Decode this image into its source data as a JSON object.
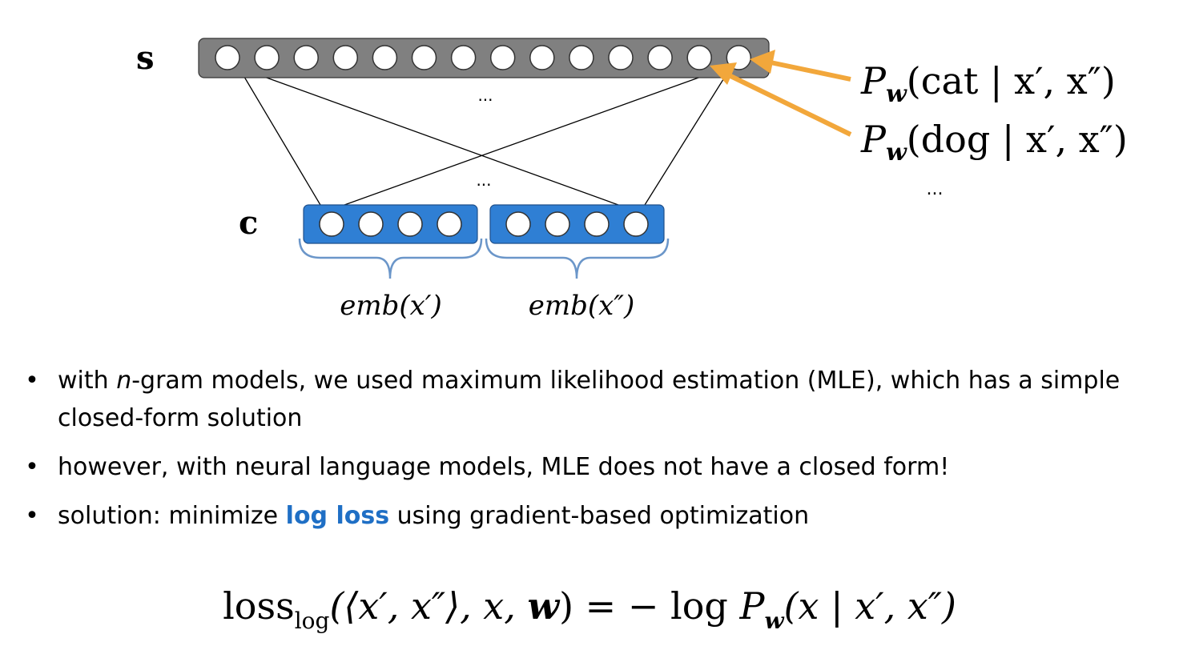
{
  "diagram": {
    "s_label": "s",
    "c_label": "c",
    "output_node_count": 14,
    "context_node_count_per_block": 4,
    "ellipsis": "...",
    "ellipsis_right": "...",
    "emb_labels": [
      "emb(x′)",
      "emb(x″)"
    ],
    "prob_labels": [
      {
        "P": "P",
        "sub": "w",
        "rest": "(cat | x′, x″)"
      },
      {
        "P": "P",
        "sub": "w",
        "rest": "(dog | x′, x″)"
      }
    ],
    "colors": {
      "output_layer": "#808080",
      "context_layer": "#2f7fd4",
      "arrow": "#f2a73b",
      "brace": "#6b96c9"
    }
  },
  "bullets": [
    {
      "pre": "with ",
      "italic": "n",
      "post": "-gram models, we used maximum likelihood estimation (MLE), which has a simple closed-form solution"
    },
    {
      "text": "however, with neural language models, MLE does not have a closed form!"
    },
    {
      "pre": "solution: minimize ",
      "highlight": "log loss",
      "post": " using gradient-based optimization"
    }
  ],
  "formula": {
    "lhs_name": "loss",
    "lhs_sub": "log",
    "lhs_args_1": "(⟨x′, x″⟩, x, ",
    "lhs_w": "w",
    "lhs_args_2": ")",
    "equals": " = − log ",
    "rhs_P": "P",
    "rhs_sub": "w",
    "rhs_rest": "(x | x′, x″)"
  }
}
